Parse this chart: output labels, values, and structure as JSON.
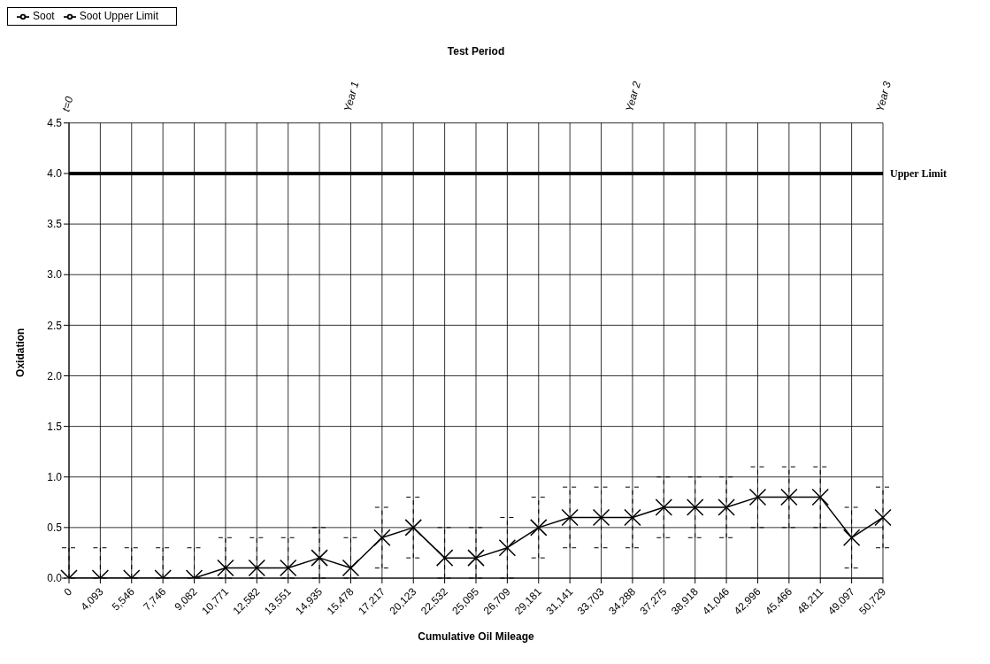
{
  "chart_data": {
    "type": "line",
    "title": "Test Period",
    "xlabel": "Cumulative Oil Mileage",
    "ylabel": "Oxidation",
    "categories": [
      "0",
      "4,093",
      "5,546",
      "7,746",
      "9,082",
      "10,771",
      "12,582",
      "13,551",
      "14,935",
      "15,478",
      "17,217",
      "20,123",
      "22,532",
      "25,095",
      "26,709",
      "29,181",
      "31,141",
      "33,703",
      "34,288",
      "37,275",
      "38,918",
      "41,046",
      "42,996",
      "45,466",
      "48,211",
      "49,097",
      "50,729"
    ],
    "series": [
      {
        "name": "Soot",
        "color": "#000000",
        "marker": "cross",
        "values": [
          0,
          0,
          0,
          0,
          0,
          0.1,
          0.1,
          0.1,
          0.2,
          0.1,
          0.4,
          0.5,
          0.2,
          0.2,
          0.3,
          0.5,
          0.6,
          0.6,
          0.6,
          0.7,
          0.7,
          0.7,
          0.8,
          0.8,
          0.8,
          0.4,
          0.6
        ],
        "errors": [
          [
            0,
            0.3
          ],
          [
            0,
            0.3
          ],
          [
            0,
            0.3
          ],
          [
            0,
            0.3
          ],
          [
            0,
            0.3
          ],
          [
            0,
            0.4
          ],
          [
            0,
            0.4
          ],
          [
            0,
            0.4
          ],
          [
            0,
            0.5
          ],
          [
            0,
            0.4
          ],
          0.3,
          0.3,
          [
            0,
            0.5
          ],
          [
            0,
            0.5
          ],
          0.3,
          0.3,
          0.3,
          0.3,
          0.3,
          0.3,
          0.3,
          0.3,
          0.3,
          0.3,
          0.3,
          0.3,
          0.3
        ]
      },
      {
        "name": "Soot Upper Limit",
        "color": "#000000",
        "marker": "none",
        "values": [
          4,
          4,
          4,
          4,
          4,
          4,
          4,
          4,
          4,
          4,
          4,
          4,
          4,
          4,
          4,
          4,
          4,
          4,
          4,
          4,
          4,
          4,
          4,
          4,
          4,
          4,
          4
        ]
      }
    ],
    "ylim": [
      0,
      4.5
    ],
    "yticks": [
      {
        "value": 0,
        "label": "0.0"
      },
      {
        "value": 0.5,
        "label": "0.5"
      },
      {
        "value": 1,
        "label": "1.0"
      },
      {
        "value": 1.5,
        "label": "1.5"
      },
      {
        "value": 2,
        "label": "2.0"
      },
      {
        "value": 2.5,
        "label": "2.5"
      },
      {
        "value": 3,
        "label": "3.0"
      },
      {
        "value": 3.5,
        "label": "3.5"
      },
      {
        "value": 4,
        "label": "4.0"
      },
      {
        "value": 4.5,
        "label": "4.5"
      }
    ],
    "grid": true,
    "legend": "top left",
    "line_style": "solid",
    "annotations": [
      {
        "text": "t=0",
        "x": "0"
      },
      {
        "text": "Year 1",
        "x": "15,478"
      },
      {
        "text": "Year 2",
        "x": "34,288"
      },
      {
        "text": "Year 3",
        "x": "50,729"
      },
      {
        "text": "Upper Limit",
        "x": "50,729",
        "y": 4
      }
    ]
  }
}
